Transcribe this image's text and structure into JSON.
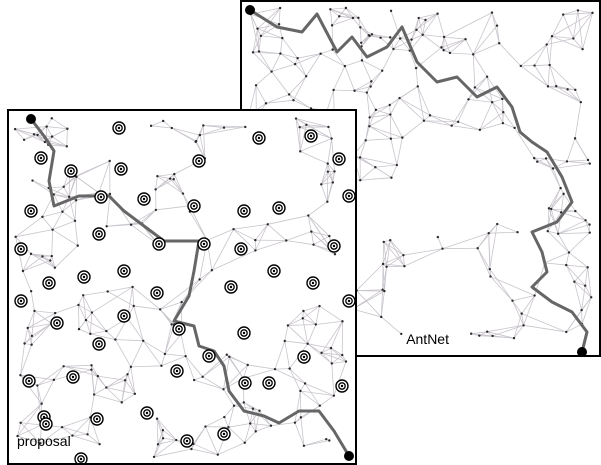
{
  "panels": [
    {
      "id": "antnet",
      "label": "AntNet",
      "seed": 7,
      "node_count": 210,
      "has_targets": false
    },
    {
      "id": "proposal",
      "label": "proposal",
      "seed": 3,
      "node_count": 190,
      "has_targets": true
    }
  ],
  "colors": {
    "edge": "#c9c4cc",
    "node": "#2a2a2a",
    "path": "#666666",
    "endpoint": "#000000",
    "frame": "#000000"
  },
  "icons": {
    "endpoint": "filled-circle",
    "target": "concentric-ring-target"
  }
}
